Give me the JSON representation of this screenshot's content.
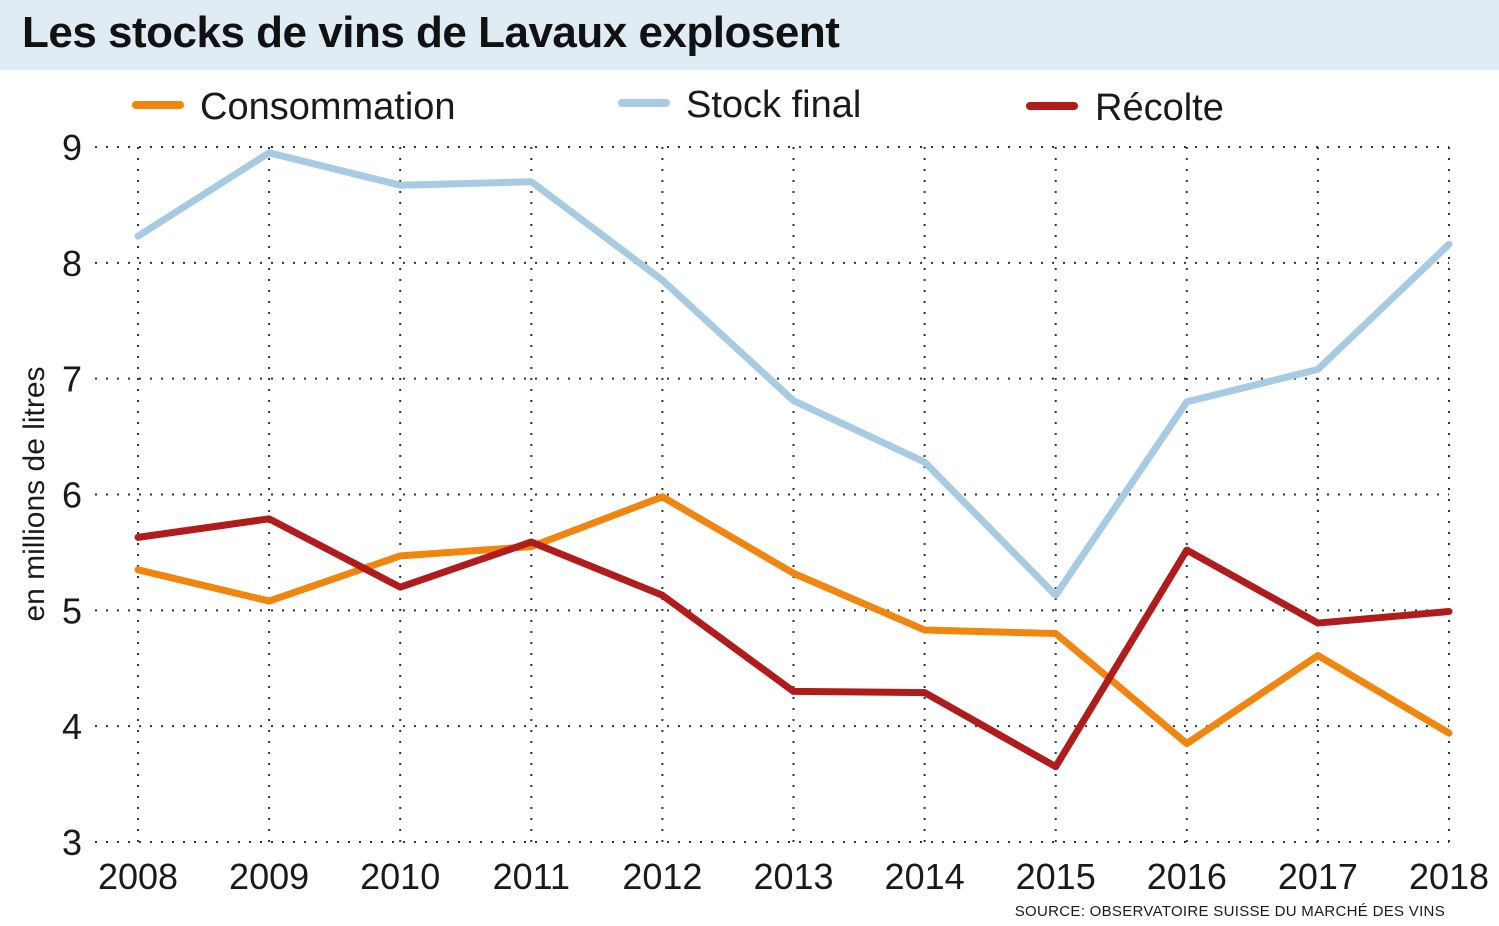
{
  "chart_data": {
    "type": "line",
    "title": "Les stocks de vins de Lavaux explosent",
    "xlabel": "",
    "ylabel": "en millions de litres",
    "source": "SOURCE: OBSERVATOIRE SUISSE DU MARCHÉ DES VINS",
    "x": [
      "2008",
      "2009",
      "2010",
      "2011",
      "2012",
      "2013",
      "2014",
      "2015",
      "2016",
      "2017",
      "2018"
    ],
    "ylim": [
      3,
      9
    ],
    "yticks": [
      "3",
      "4",
      "5",
      "6",
      "7",
      "8",
      "9"
    ],
    "grid": true,
    "legend_position": "top",
    "series": [
      {
        "name": "Consommation",
        "color": "#f0860f",
        "values": [
          5.35,
          5.08,
          5.47,
          5.55,
          5.98,
          5.32,
          4.83,
          4.8,
          3.85,
          4.61,
          3.94
        ]
      },
      {
        "name": "Stock final",
        "color": "#a7cbe2",
        "values": [
          8.23,
          8.95,
          8.67,
          8.7,
          7.85,
          6.81,
          6.28,
          5.13,
          6.8,
          7.08,
          8.16
        ]
      },
      {
        "name": "Récolte",
        "color": "#b01c1c",
        "values": [
          5.63,
          5.79,
          5.2,
          5.59,
          5.13,
          4.3,
          4.29,
          3.65,
          5.52,
          4.89,
          4.99
        ]
      }
    ]
  }
}
